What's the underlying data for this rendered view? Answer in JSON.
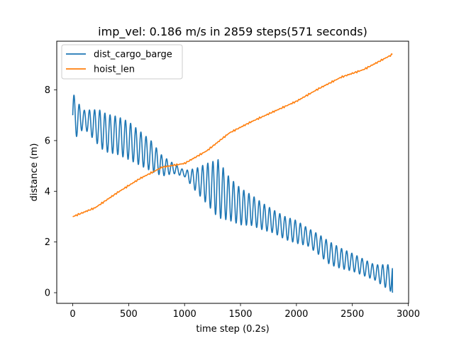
{
  "chart_data": {
    "type": "line",
    "title": "imp_vel: 0.186 m/s in 2859 steps(571 seconds)",
    "xlabel": "time step (0.2s)",
    "ylabel": "distance (m)",
    "xlim": [
      -143,
      3003
    ],
    "ylim": [
      -0.42,
      9.92
    ],
    "x_ticks": [
      0,
      500,
      1000,
      1500,
      2000,
      2500,
      3000
    ],
    "y_ticks": [
      0,
      2,
      4,
      6,
      8
    ],
    "grid": false,
    "legend_position": "top-left",
    "series": [
      {
        "name": "dist_cargo_barge",
        "color": "#1f77b4",
        "kind": "oscillation",
        "x_start": 0,
        "x_end": 2859,
        "sample_step": 2,
        "period": 46,
        "center_points": [
          [
            0,
            7.0
          ],
          [
            40,
            6.85
          ],
          [
            100,
            6.85
          ],
          [
            200,
            6.6
          ],
          [
            300,
            6.3
          ],
          [
            400,
            6.2
          ],
          [
            500,
            6.0
          ],
          [
            600,
            5.7
          ],
          [
            700,
            5.4
          ],
          [
            800,
            5.0
          ],
          [
            900,
            4.9
          ],
          [
            1000,
            4.7
          ],
          [
            1100,
            4.45
          ],
          [
            1200,
            4.3
          ],
          [
            1300,
            4.1
          ],
          [
            1400,
            3.7
          ],
          [
            1500,
            3.4
          ],
          [
            1600,
            3.25
          ],
          [
            1700,
            3.0
          ],
          [
            1800,
            2.8
          ],
          [
            1900,
            2.55
          ],
          [
            2000,
            2.4
          ],
          [
            2100,
            2.2
          ],
          [
            2200,
            1.9
          ],
          [
            2300,
            1.55
          ],
          [
            2400,
            1.35
          ],
          [
            2500,
            1.2
          ],
          [
            2600,
            1.0
          ],
          [
            2700,
            0.8
          ],
          [
            2800,
            0.65
          ],
          [
            2859,
            0.55
          ]
        ],
        "amplitude_points": [
          [
            0,
            0.9
          ],
          [
            100,
            0.35
          ],
          [
            250,
            0.75
          ],
          [
            500,
            0.75
          ],
          [
            700,
            0.6
          ],
          [
            900,
            0.2
          ],
          [
            1000,
            0.12
          ],
          [
            1100,
            0.45
          ],
          [
            1300,
            1.15
          ],
          [
            1400,
            0.85
          ],
          [
            1600,
            0.6
          ],
          [
            1800,
            0.45
          ],
          [
            2000,
            0.45
          ],
          [
            2100,
            0.35
          ],
          [
            2300,
            0.45
          ],
          [
            2500,
            0.35
          ],
          [
            2700,
            0.3
          ],
          [
            2859,
            0.55
          ]
        ]
      },
      {
        "name": "hoist_len",
        "color": "#ff7f0e",
        "kind": "ramp",
        "x_start": 0,
        "x_end": 2859,
        "sample_step": 10,
        "points": [
          [
            0,
            3.0
          ],
          [
            200,
            3.35
          ],
          [
            400,
            3.95
          ],
          [
            600,
            4.5
          ],
          [
            800,
            4.95
          ],
          [
            1000,
            5.1
          ],
          [
            1200,
            5.6
          ],
          [
            1400,
            6.3
          ],
          [
            1600,
            6.75
          ],
          [
            1800,
            7.15
          ],
          [
            2000,
            7.55
          ],
          [
            2200,
            8.05
          ],
          [
            2400,
            8.5
          ],
          [
            2600,
            8.8
          ],
          [
            2859,
            9.4
          ]
        ]
      }
    ]
  }
}
